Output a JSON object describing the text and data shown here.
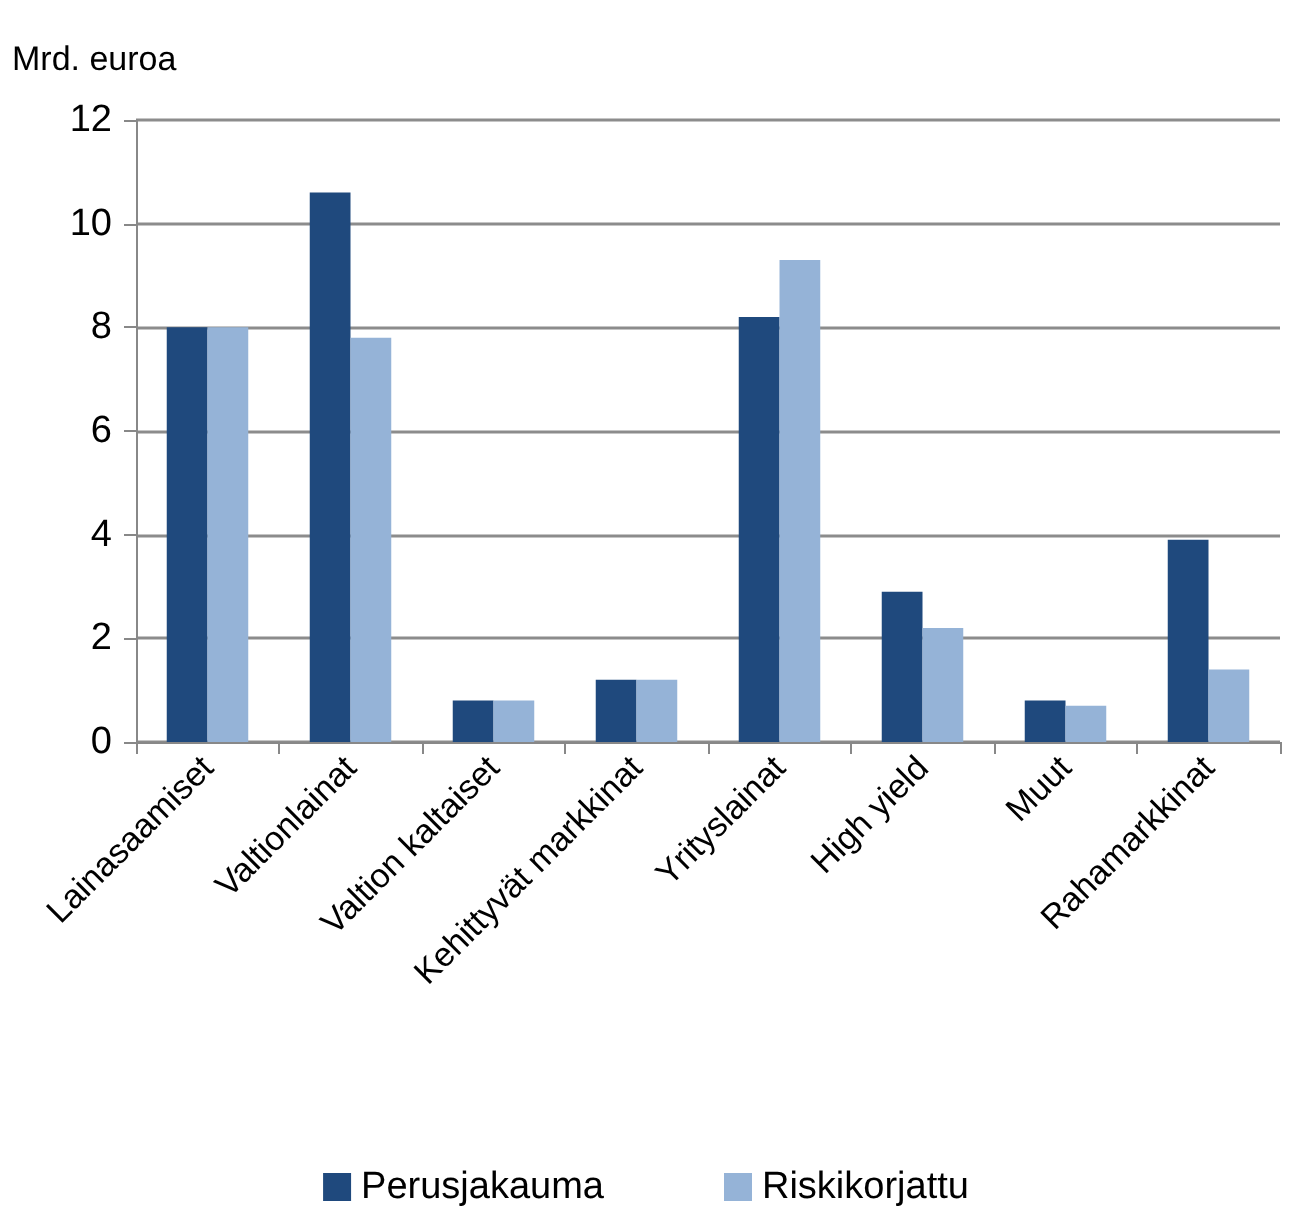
{
  "chart_data": {
    "type": "bar",
    "ylabel": "Mrd. euroa",
    "categories": [
      "Lainasaamiset",
      "Valtionlainat",
      "Valtion kaltaiset",
      "Kehittyvät markkinat",
      "Yrityslainat",
      "High yield",
      "Muut",
      "Rahamarkkinat"
    ],
    "series": [
      {
        "name": "Perusjakauma",
        "color": "#1f497d",
        "values": [
          8.0,
          10.6,
          0.8,
          1.2,
          8.2,
          2.9,
          0.8,
          3.9
        ]
      },
      {
        "name": "Riskikorjattu",
        "color": "#95b3d7",
        "values": [
          8.0,
          7.8,
          0.8,
          1.2,
          9.3,
          2.2,
          0.7,
          1.4
        ]
      }
    ],
    "ylim": [
      0,
      12
    ],
    "yticks": [
      0,
      2,
      4,
      6,
      8,
      10,
      12
    ],
    "grid": "y",
    "legend": "bottom"
  }
}
